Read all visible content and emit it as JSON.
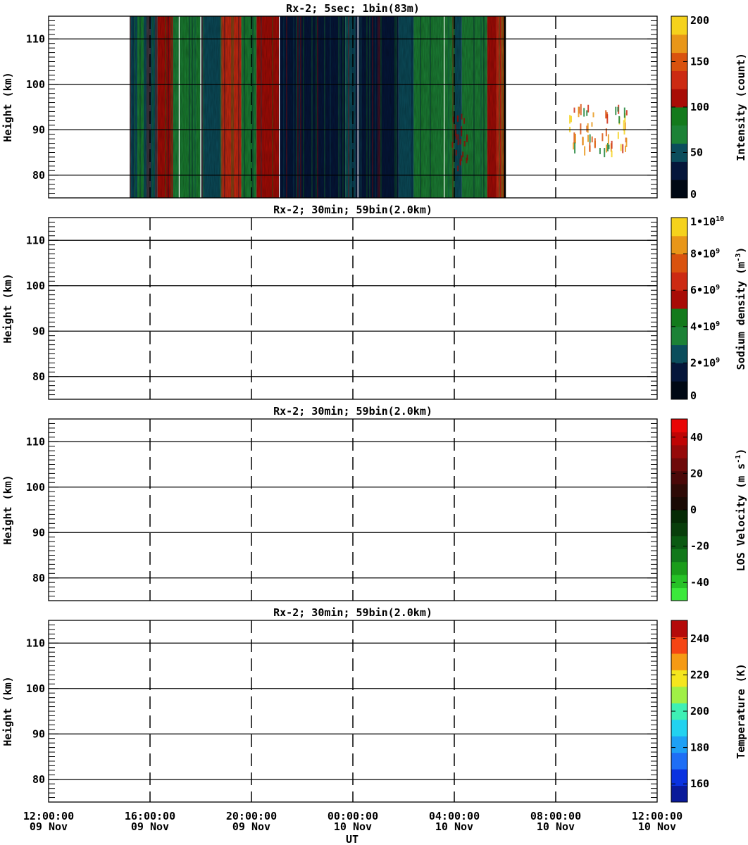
{
  "chart_data": [
    {
      "type": "heatmap",
      "title": "Rx-2;  5sec; 1bin(83m)",
      "ylabel": "Height (km)",
      "ylim": [
        75,
        115
      ],
      "yticks": [
        "80",
        "90",
        "100",
        "110"
      ],
      "colorbar": {
        "label": "Intensity (count)",
        "range": [
          0,
          200
        ],
        "ticks": [
          "0",
          "50",
          "100",
          "150",
          "200"
        ],
        "colors": [
          "#000814",
          "#05163a",
          "#0b4d5c",
          "#1c8236",
          "#137a1c",
          "#a80c06",
          "#cc2a12",
          "#d9520e",
          "#e89618",
          "#f5d21c"
        ]
      },
      "data_coverage_hours": [
        3.2,
        18.0
      ],
      "grid": "solid horizontal at 80/90/100/110 km; dashed vertical every 4 h"
    },
    {
      "type": "heatmap",
      "title": "Rx-2; 30min; 59bin(2.0km)",
      "ylabel": "Height (km)",
      "ylim": [
        75,
        115
      ],
      "yticks": [
        "80",
        "90",
        "100",
        "110"
      ],
      "colorbar": {
        "label": "Sodium density (m",
        "label_sup": "-3",
        "label_end": ")",
        "range": [
          0,
          10000000000
        ],
        "ticks": [
          "0",
          "2•10",
          "4•10",
          "6•10",
          "8•10",
          "1•10"
        ],
        "tick_sups": [
          "",
          "9",
          "9",
          "9",
          "9",
          "10"
        ],
        "colors": [
          "#000814",
          "#05163a",
          "#0b4d5c",
          "#1c8236",
          "#137a1c",
          "#a80c06",
          "#cc2a12",
          "#d9520e",
          "#e89618",
          "#f5d21c"
        ]
      },
      "data_coverage_hours": []
    },
    {
      "type": "heatmap",
      "title": "Rx-2; 30min; 59bin(2.0km)",
      "ylabel": "Height (km)",
      "ylim": [
        75,
        115
      ],
      "yticks": [
        "80",
        "90",
        "100",
        "110"
      ],
      "colorbar": {
        "label": "LOS Velocity (m s",
        "label_sup": "-1",
        "label_end": ")",
        "range": [
          -50,
          50
        ],
        "ticks": [
          "-40",
          "-20",
          "0",
          "20",
          "40"
        ],
        "colors": [
          "#3be83b",
          "#27c227",
          "#1a9c1a",
          "#11781a",
          "#0b5a12",
          "#083e0b",
          "#052a05",
          "#1a0a04",
          "#2e0a06",
          "#4a0808",
          "#6e0a0a",
          "#960a0a",
          "#bf0505",
          "#e80606"
        ]
      },
      "data_coverage_hours": []
    },
    {
      "type": "heatmap",
      "title": "Rx-2; 30min; 59bin(2.0km)",
      "ylabel": "Height (km)",
      "ylim": [
        75,
        115
      ],
      "yticks": [
        "80",
        "90",
        "100",
        "110"
      ],
      "xlabel": "UT",
      "colorbar": {
        "label": "Temperature (K)",
        "range": [
          150,
          250
        ],
        "ticks": [
          "160",
          "180",
          "200",
          "220",
          "240"
        ],
        "colors": [
          "#0a1a9a",
          "#0a32e0",
          "#1e6ef5",
          "#1ea0f5",
          "#22d2f0",
          "#3ef0b4",
          "#a0f046",
          "#f5e61e",
          "#f59a14",
          "#f54514",
          "#b40a0a"
        ]
      },
      "data_coverage_hours": []
    }
  ],
  "x_axis": {
    "range_hours": [
      0,
      24
    ],
    "ticks": [
      {
        "time": "12:00:00",
        "date": "09 Nov"
      },
      {
        "time": "16:00:00",
        "date": "09 Nov"
      },
      {
        "time": "20:00:00",
        "date": "09 Nov"
      },
      {
        "time": "00:00:00",
        "date": "10 Nov"
      },
      {
        "time": "04:00:00",
        "date": "10 Nov"
      },
      {
        "time": "08:00:00",
        "date": "10 Nov"
      },
      {
        "time": "12:00:00",
        "date": "10 Nov"
      }
    ],
    "label": "UT"
  }
}
